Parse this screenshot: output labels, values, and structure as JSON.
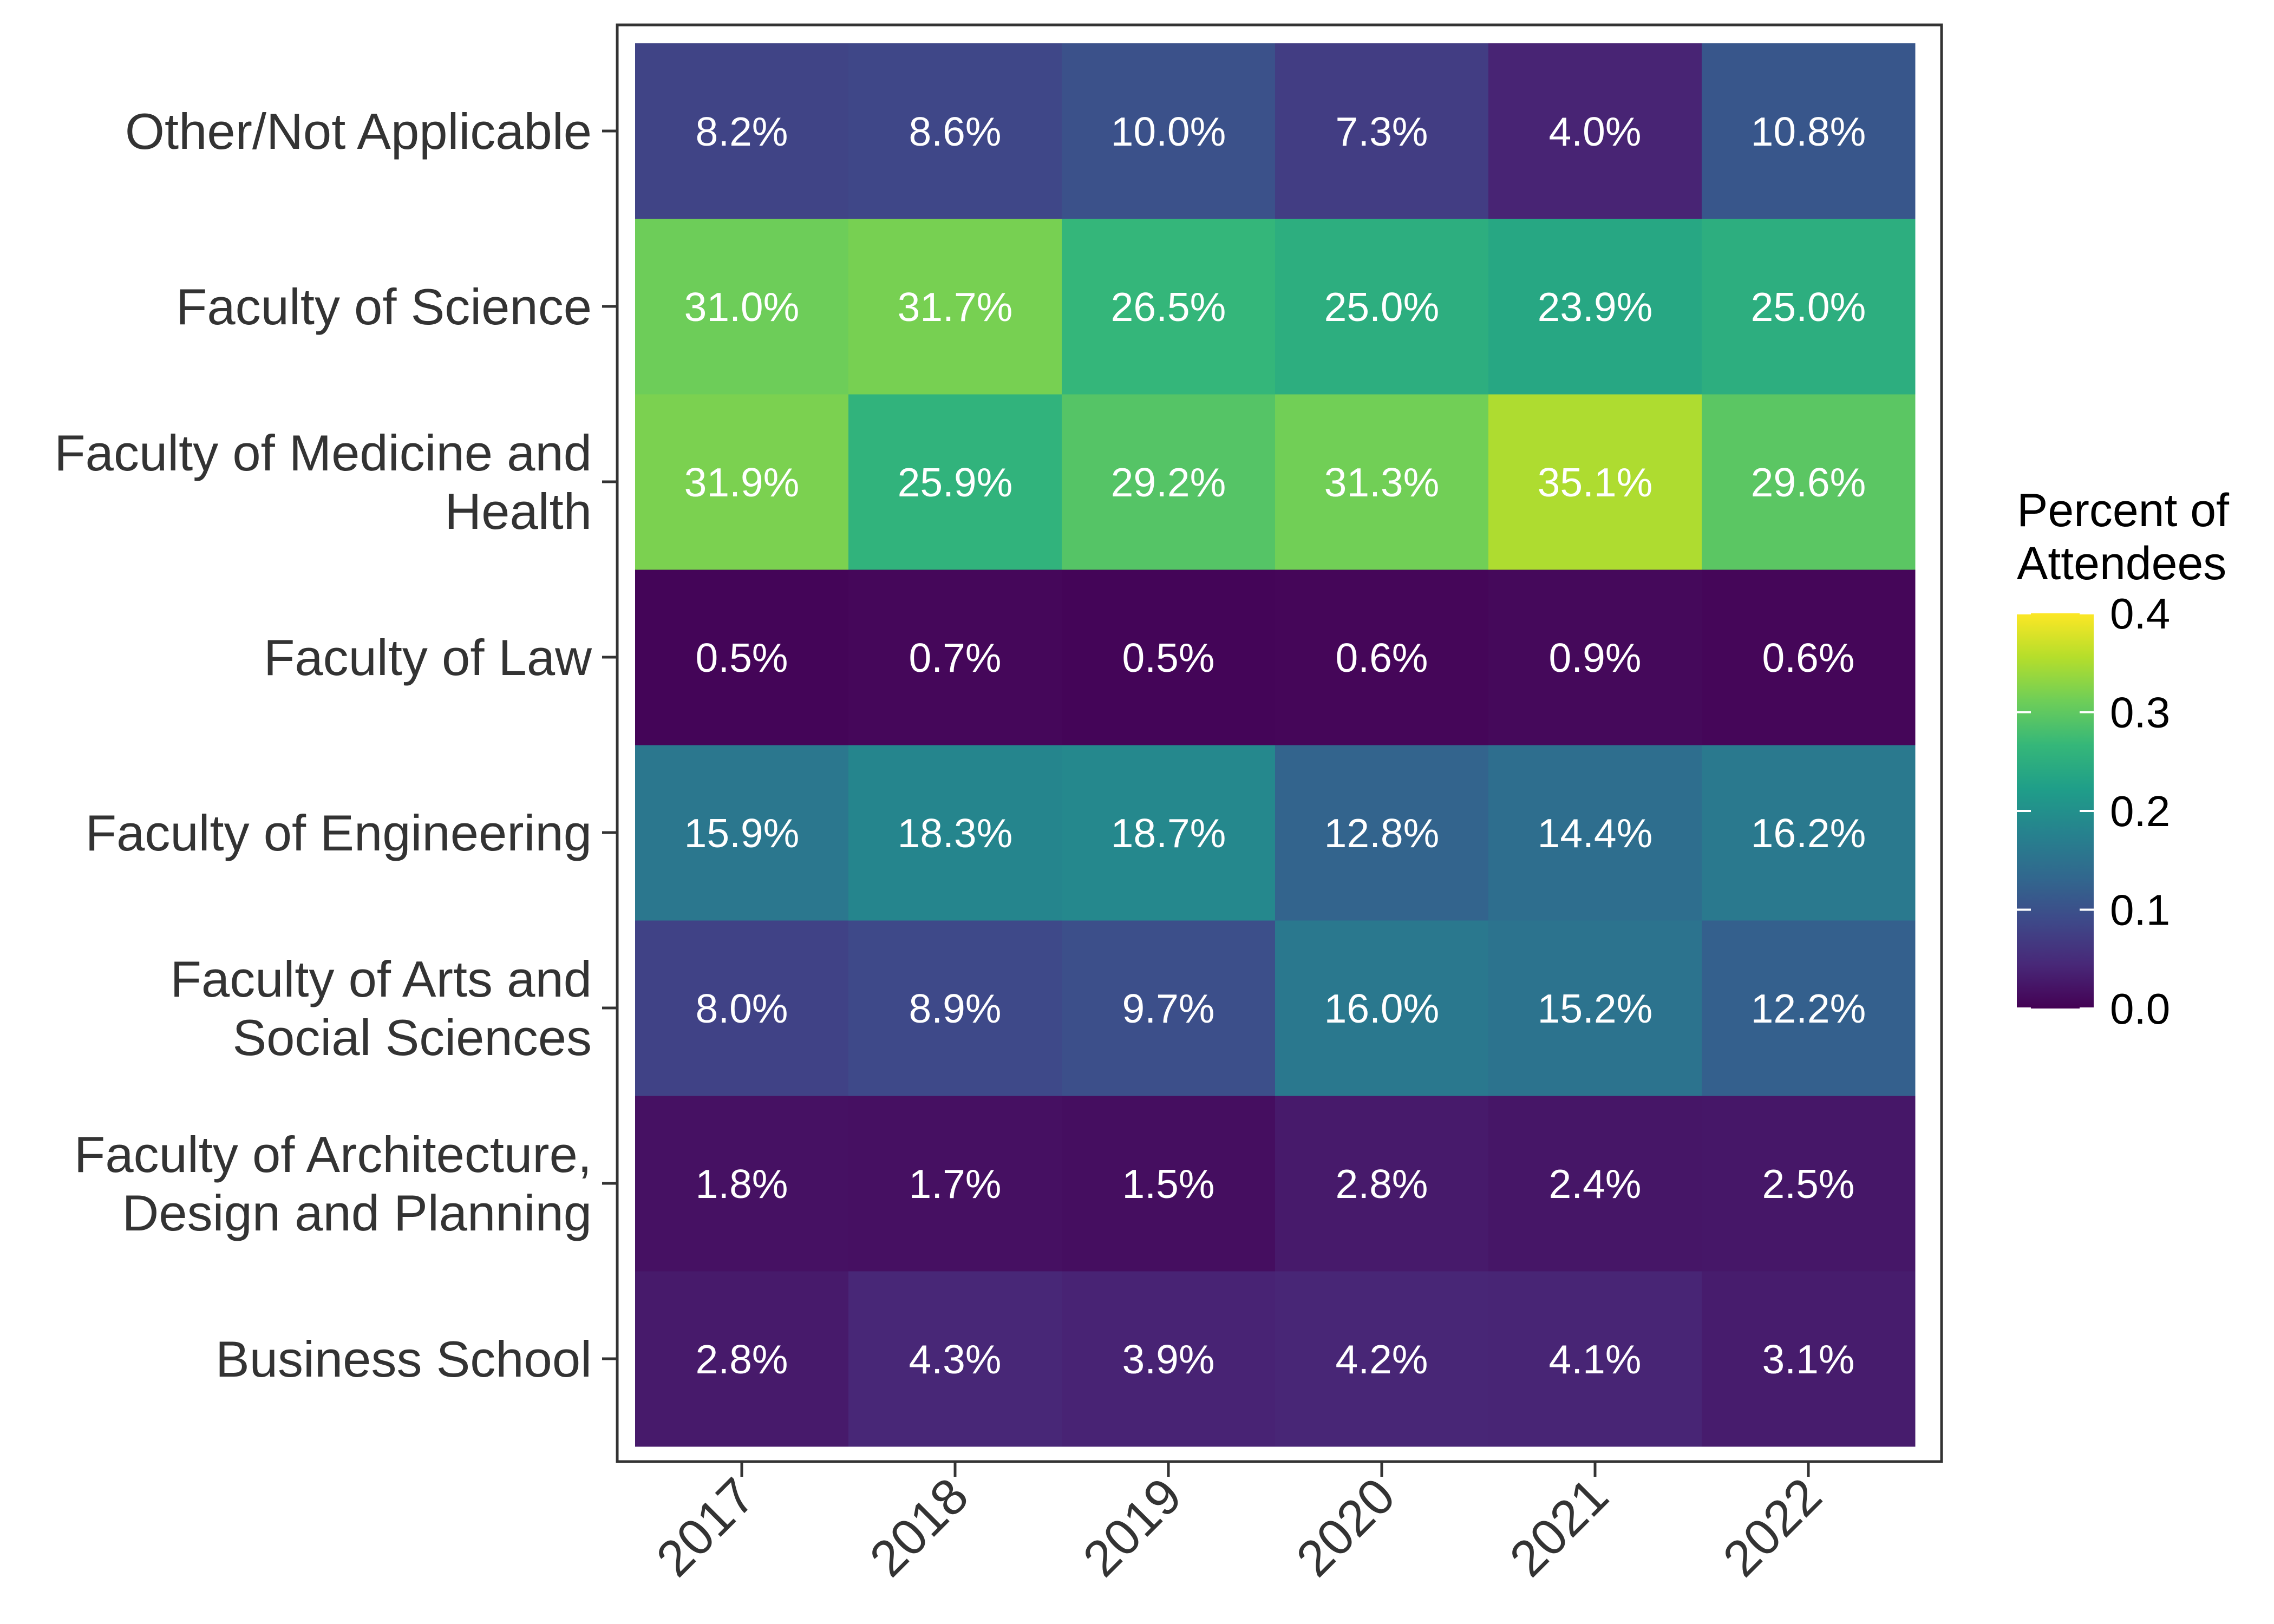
{
  "chart_data": {
    "type": "heatmap",
    "x": [
      "2017",
      "2018",
      "2019",
      "2020",
      "2021",
      "2022"
    ],
    "y": [
      "Business School",
      "Faculty of Architecture,\nDesign and Planning",
      "Faculty of Arts and\nSocial Sciences",
      "Faculty of Engineering",
      "Faculty of Law",
      "Faculty of Medicine and\nHealth",
      "Faculty of Science",
      "Other/Not Applicable"
    ],
    "values": [
      [
        0.028,
        0.043,
        0.039,
        0.042,
        0.041,
        0.031
      ],
      [
        0.018,
        0.017,
        0.015,
        0.028,
        0.024,
        0.025
      ],
      [
        0.08,
        0.089,
        0.097,
        0.16,
        0.152,
        0.122
      ],
      [
        0.159,
        0.183,
        0.187,
        0.128,
        0.144,
        0.162
      ],
      [
        0.005,
        0.007,
        0.005,
        0.006,
        0.009,
        0.006
      ],
      [
        0.319,
        0.259,
        0.292,
        0.313,
        0.351,
        0.296
      ],
      [
        0.31,
        0.317,
        0.265,
        0.25,
        0.239,
        0.25
      ],
      [
        0.082,
        0.086,
        0.1,
        0.073,
        0.04,
        0.108
      ]
    ],
    "labels": [
      [
        "2.8%",
        "4.3%",
        "3.9%",
        "4.2%",
        "4.1%",
        "3.1%"
      ],
      [
        "1.8%",
        "1.7%",
        "1.5%",
        "2.8%",
        "2.4%",
        "2.5%"
      ],
      [
        "8.0%",
        "8.9%",
        "9.7%",
        "16.0%",
        "15.2%",
        "12.2%"
      ],
      [
        "15.9%",
        "18.3%",
        "18.7%",
        "12.8%",
        "14.4%",
        "16.2%"
      ],
      [
        "0.5%",
        "0.7%",
        "0.5%",
        "0.6%",
        "0.9%",
        "0.6%"
      ],
      [
        "31.9%",
        "25.9%",
        "29.2%",
        "31.3%",
        "35.1%",
        "29.6%"
      ],
      [
        "31.0%",
        "31.7%",
        "26.5%",
        "25.0%",
        "23.9%",
        "25.0%"
      ],
      [
        "8.2%",
        "8.6%",
        "10.0%",
        "7.3%",
        "4.0%",
        "10.8%"
      ]
    ],
    "legend": {
      "title": [
        "Percent of",
        "Attendees"
      ],
      "ticks": [
        "0.0",
        "0.1",
        "0.2",
        "0.3",
        "0.4"
      ],
      "min": 0,
      "max": 0.4,
      "placement": "right"
    },
    "colorscale": "viridis",
    "title": "",
    "xlabel": "",
    "ylabel": "",
    "grid": false
  }
}
